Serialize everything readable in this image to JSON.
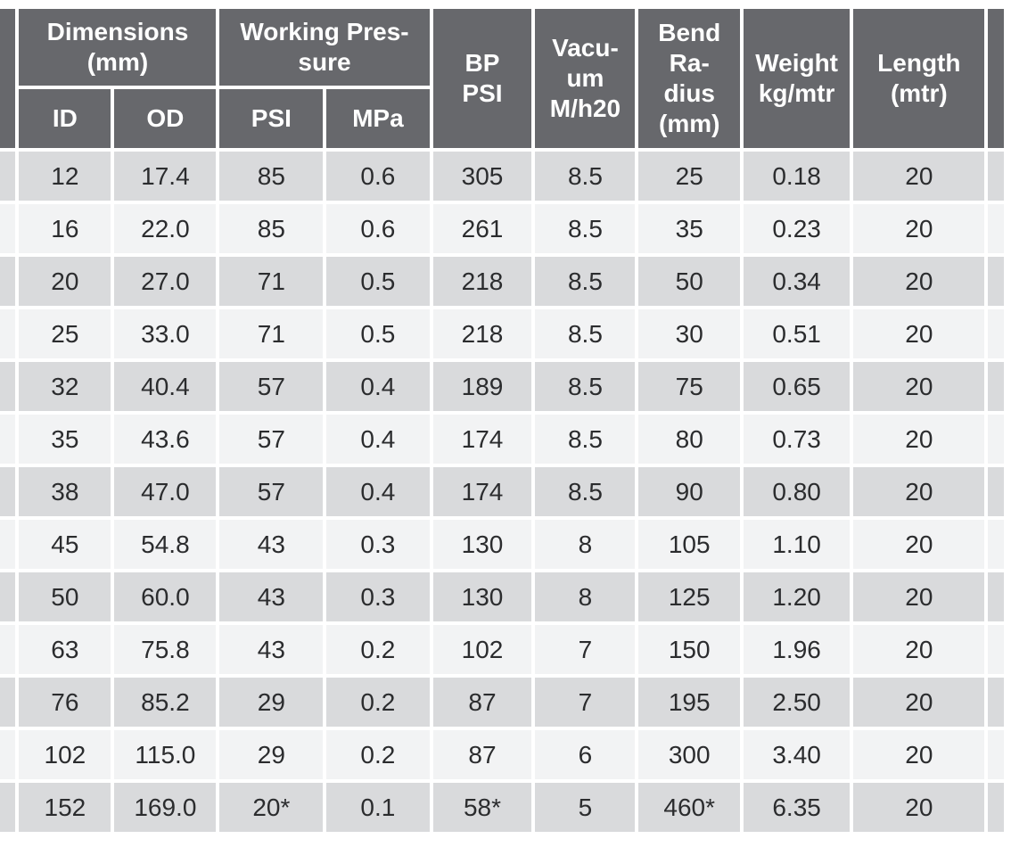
{
  "table": {
    "header": {
      "dimensions": "Dimensions\n(mm)",
      "working_pressure": "Working Pres-\nsure",
      "id": "ID",
      "od": "OD",
      "psi": "PSI",
      "mpa": "MPa",
      "bp_psi": "BP\nPSI",
      "vacuum": "Vacu-\num\nM/h20",
      "bend_radius": "Bend\nRa-\ndius\n(mm)",
      "weight": "Weight\nkg/mtr",
      "length": "Length\n(mtr)"
    },
    "rows": [
      [
        "12",
        "17.4",
        "85",
        "0.6",
        "305",
        "8.5",
        "25",
        "0.18",
        "20"
      ],
      [
        "16",
        "22.0",
        "85",
        "0.6",
        "261",
        "8.5",
        "35",
        "0.23",
        "20"
      ],
      [
        "20",
        "27.0",
        "71",
        "0.5",
        "218",
        "8.5",
        "50",
        "0.34",
        "20"
      ],
      [
        "25",
        "33.0",
        "71",
        "0.5",
        "218",
        "8.5",
        "30",
        "0.51",
        "20"
      ],
      [
        "32",
        "40.4",
        "57",
        "0.4",
        "189",
        "8.5",
        "75",
        "0.65",
        "20"
      ],
      [
        "35",
        "43.6",
        "57",
        "0.4",
        "174",
        "8.5",
        "80",
        "0.73",
        "20"
      ],
      [
        "38",
        "47.0",
        "57",
        "0.4",
        "174",
        "8.5",
        "90",
        "0.80",
        "20"
      ],
      [
        "45",
        "54.8",
        "43",
        "0.3",
        "130",
        "8",
        "105",
        "1.10",
        "20"
      ],
      [
        "50",
        "60.0",
        "43",
        "0.3",
        "130",
        "8",
        "125",
        "1.20",
        "20"
      ],
      [
        "63",
        "75.8",
        "43",
        "0.2",
        "102",
        "7",
        "150",
        "1.96",
        "20"
      ],
      [
        "76",
        "85.2",
        "29",
        "0.2",
        "87",
        "7",
        "195",
        "2.50",
        "20"
      ],
      [
        "102",
        "115.0",
        "29",
        "0.2",
        "87",
        "6",
        "300",
        "3.40",
        "20"
      ],
      [
        "152",
        "169.0",
        "20*",
        "0.1",
        "58*",
        "5",
        "460*",
        "6.35",
        "20"
      ]
    ],
    "colors": {
      "header_bg": "#67686c",
      "header_text": "#ffffff",
      "row_odd_bg": "#d9dadc",
      "row_even_bg": "#f2f3f4",
      "body_text": "#2b2c2e"
    }
  }
}
